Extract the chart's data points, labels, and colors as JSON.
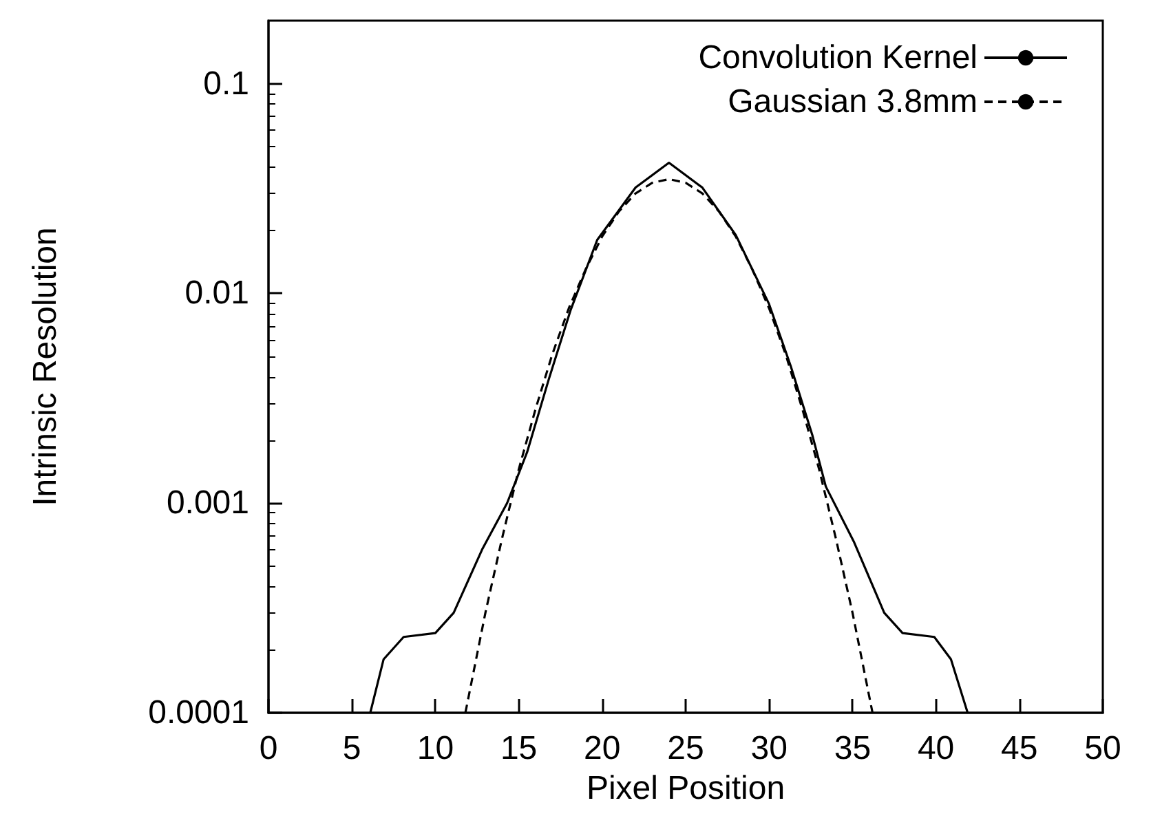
{
  "chart_data": {
    "type": "line",
    "xlabel": "Pixel Position",
    "ylabel": "Intrinsic Resolution",
    "log": "y",
    "grid": false,
    "legend": "top right",
    "marker": "none",
    "xlim": [
      0,
      50
    ],
    "xticks": [
      0,
      5,
      10,
      15,
      20,
      25,
      30,
      35,
      40,
      45,
      50
    ],
    "ylim": [
      0.0001,
      0.2
    ],
    "yticks": [
      0.0001,
      0.001,
      0.01,
      0.1
    ],
    "series": [
      {
        "name": "Convolution Kernel",
        "color": "#000000",
        "line_style": "solid",
        "x": [
          6.1,
          6.9,
          8.1,
          10,
          11.1,
          12.8,
          14.3,
          15.5,
          16.8,
          18.1,
          19.7,
          22,
          24,
          26,
          28,
          30,
          31.3,
          32.6,
          33.4,
          35.1,
          36.9,
          38,
          39.9,
          40.9,
          41.9
        ],
        "values": [
          0.0001,
          0.00018,
          0.00023,
          0.00024,
          0.0003,
          0.0006,
          0.001,
          0.00175,
          0.0039,
          0.0083,
          0.018,
          0.032,
          0.042,
          0.032,
          0.019,
          0.0089,
          0.0045,
          0.0021,
          0.0012,
          0.00065,
          0.0003,
          0.00024,
          0.00023,
          0.00018,
          0.0001
        ]
      },
      {
        "name": "Gaussian 3.8mm",
        "color": "#000000",
        "line_style": "dashed",
        "x": [
          11.8,
          12,
          13,
          14,
          15,
          16,
          17,
          18,
          19,
          20,
          21,
          22,
          23,
          24,
          25,
          26,
          27,
          28,
          29,
          30,
          31,
          32,
          33,
          34,
          35,
          36,
          36.2
        ],
        "values": [
          0.0001,
          0.00012,
          0.0003,
          0.00068,
          0.00145,
          0.0028,
          0.0051,
          0.0085,
          0.013,
          0.0187,
          0.0246,
          0.03,
          0.0337,
          0.0351,
          0.0337,
          0.03,
          0.0246,
          0.0187,
          0.013,
          0.0085,
          0.0051,
          0.0028,
          0.00145,
          0.00068,
          0.0003,
          0.00012,
          0.0001
        ]
      }
    ]
  }
}
